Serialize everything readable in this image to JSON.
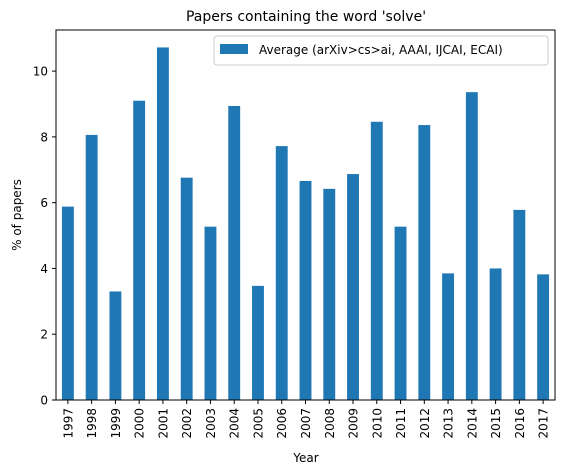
{
  "chart_data": {
    "type": "bar",
    "title": "Papers containing the word 'solve'",
    "xlabel": "Year",
    "ylabel": "% of papers",
    "categories": [
      "1997",
      "1998",
      "1999",
      "2000",
      "2001",
      "2002",
      "2003",
      "2004",
      "2005",
      "2006",
      "2007",
      "2008",
      "2009",
      "2010",
      "2011",
      "2012",
      "2013",
      "2014",
      "2015",
      "2016",
      "2017"
    ],
    "series": [
      {
        "name": "Average (arXiv>cs>ai, AAAI, IJCAI, ECAI)",
        "color": "#1f77b4",
        "values": [
          5.88,
          8.06,
          3.3,
          9.1,
          10.72,
          6.76,
          5.27,
          8.94,
          3.47,
          7.72,
          6.66,
          6.42,
          6.87,
          8.46,
          5.27,
          8.36,
          3.85,
          9.36,
          4.0,
          5.78,
          3.82
        ]
      }
    ],
    "ylim": [
      0,
      11.25
    ],
    "yticks": [
      0,
      2,
      4,
      6,
      8,
      10
    ],
    "grid": false,
    "legend": "top-right"
  }
}
